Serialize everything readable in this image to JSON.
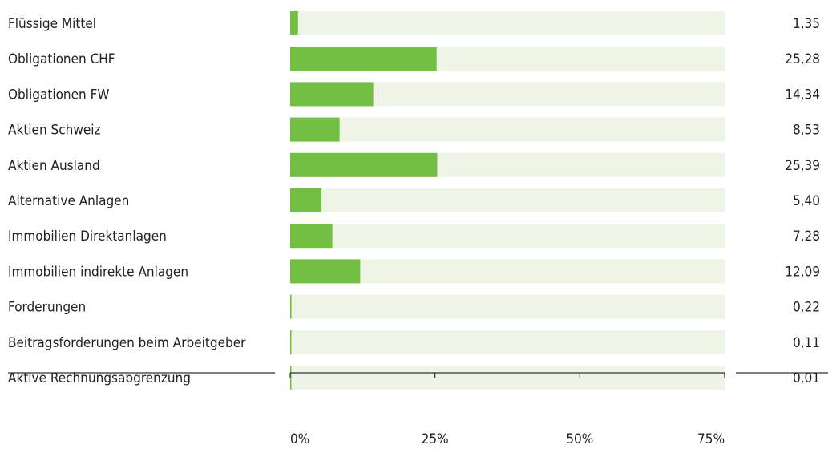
{
  "chart_data": {
    "type": "bar",
    "orientation": "horizontal",
    "categories": [
      "Flüssige Mittel",
      "Obligationen CHF",
      "Obligationen FW",
      "Aktien Schweiz",
      "Aktien Ausland",
      "Alternative Anlagen",
      "Immobilien Direktanlagen",
      "Immobilien indirekte Anlagen",
      "Forderungen",
      "Beitragsforderungen beim Arbeitgeber",
      "Aktive Rechnungsabgrenzung"
    ],
    "values": [
      1.35,
      25.28,
      14.34,
      8.53,
      25.39,
      5.4,
      7.28,
      12.09,
      0.22,
      0.11,
      0.01
    ],
    "value_labels": [
      "1,35",
      "25,28",
      "14,34",
      "8,53",
      "25,39",
      "5,40",
      "7,28",
      "12,09",
      "0,22",
      "0,11",
      "0,01"
    ],
    "xlim": [
      0,
      75
    ],
    "xticks": [
      0,
      25,
      50,
      75
    ],
    "xtick_labels": [
      "0%",
      "25%",
      "50%",
      "75%"
    ],
    "colors": {
      "bar": "#72bf44",
      "track": "#eef5e6",
      "axis": "#333333"
    },
    "grid": false,
    "legend": "none"
  }
}
